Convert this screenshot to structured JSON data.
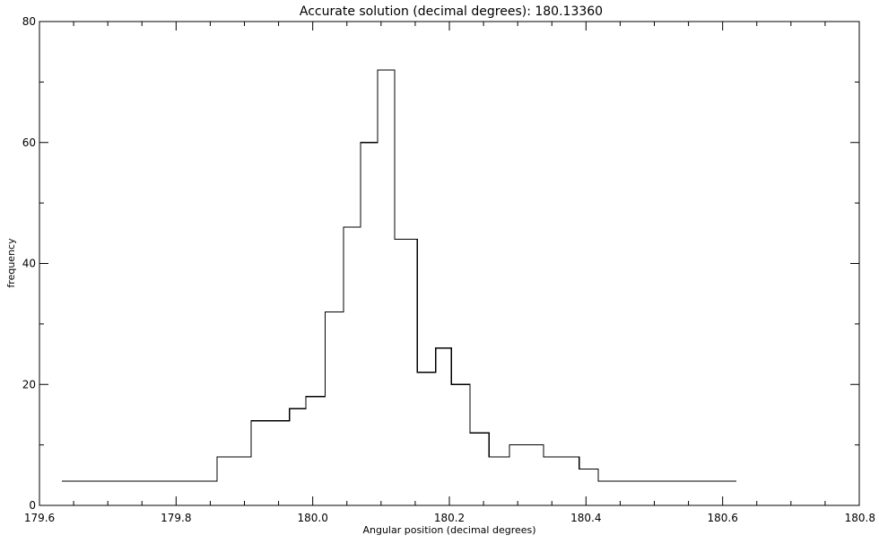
{
  "chart_data": {
    "type": "line",
    "step": true,
    "title": "Accurate solution (decimal degrees): 180.13360",
    "xlabel": "Angular position (decimal degrees)",
    "ylabel": "frequency",
    "xlim": [
      179.6,
      180.8
    ],
    "ylim": [
      0,
      80
    ],
    "x_ticks": [
      "179.6",
      "179.8",
      "180.0",
      "180.2",
      "180.4",
      "180.6",
      "180.8"
    ],
    "y_ticks": [
      "0",
      "20",
      "40",
      "60",
      "80"
    ],
    "x_minor_step": 0.05,
    "y_minor_step": 10,
    "legend": "none",
    "grid": false,
    "series": [
      {
        "x": [
          179.633,
          179.86,
          179.91,
          179.966,
          179.99,
          180.018,
          180.045,
          180.07,
          180.095,
          180.12,
          180.153,
          180.18,
          180.203,
          180.23,
          180.258,
          180.288,
          180.338,
          180.39,
          180.418,
          180.62
        ],
        "values": [
          4,
          8,
          14,
          16,
          18,
          32,
          46,
          60,
          72,
          44,
          22,
          26,
          20,
          12,
          8,
          10,
          8,
          6,
          4,
          4
        ]
      }
    ]
  }
}
